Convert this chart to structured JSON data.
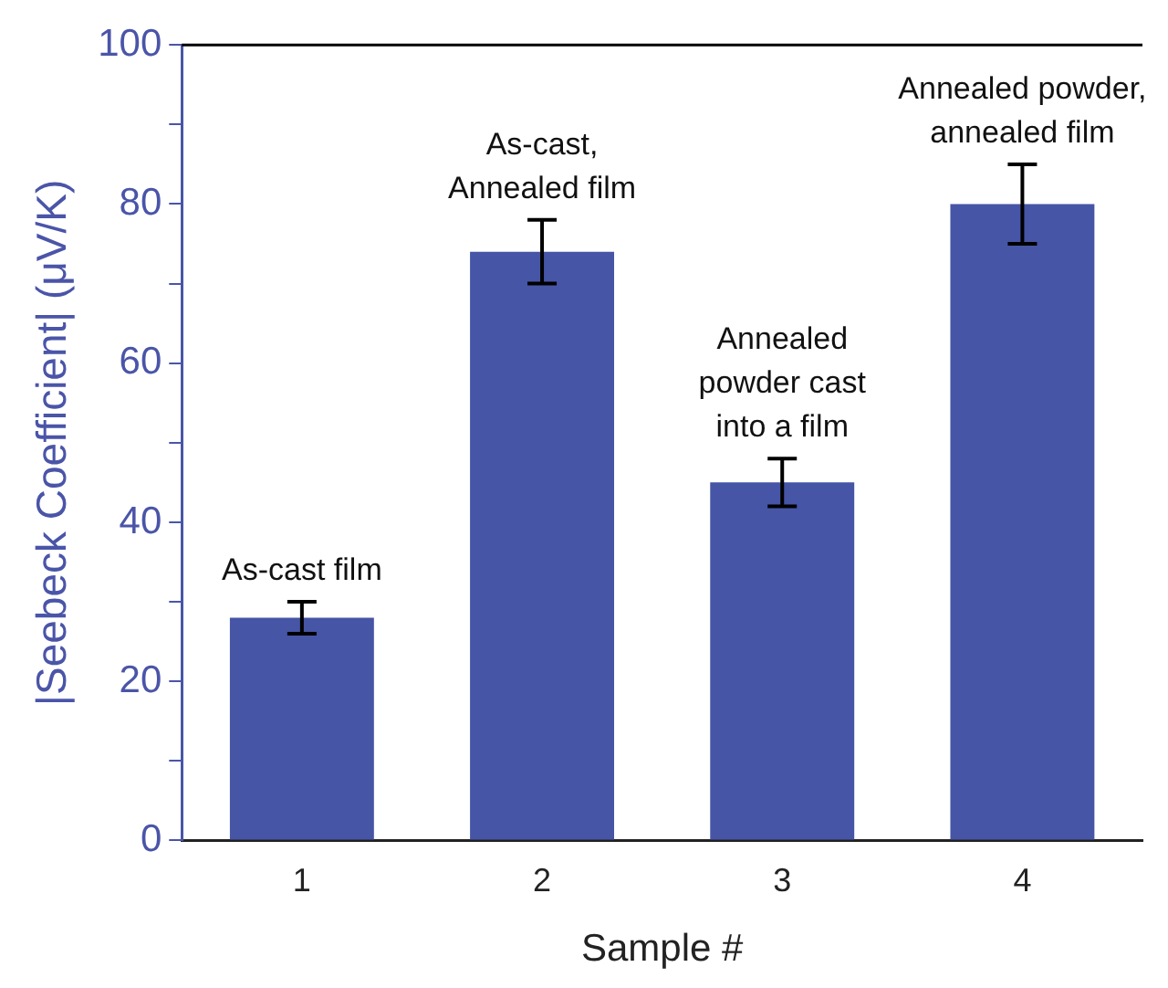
{
  "chart_data": {
    "type": "bar",
    "xlabel": "Sample #",
    "ylabel": "|Seebeck Coefficient| (μV/K)",
    "categories": [
      "1",
      "2",
      "3",
      "4"
    ],
    "values": [
      28,
      74,
      45,
      80
    ],
    "errors": [
      2,
      4,
      3,
      5
    ],
    "color": "#4655a5",
    "ylim": [
      0,
      100
    ],
    "yticks": [
      0,
      {
        "value": 10,
        "label": null
      },
      20,
      {
        "value": 30,
        "label": null
      },
      40,
      {
        "value": 50,
        "label": null
      },
      60,
      {
        "value": 70,
        "label": null
      },
      80,
      {
        "value": 90,
        "label": null
      },
      100
    ],
    "annotations": [
      {
        "text": "As-cast film",
        "x": "1",
        "y": 28
      },
      {
        "text": "As-cast,\nAnnealed film",
        "x": "2",
        "y": 74
      },
      {
        "text": "Annealed\npowder cast\ninto a film",
        "x": "3",
        "y": 45
      },
      {
        "text": "Annealed powder,\nannealed film",
        "x": "4",
        "y": 80
      }
    ],
    "grid": false,
    "legend": false
  }
}
